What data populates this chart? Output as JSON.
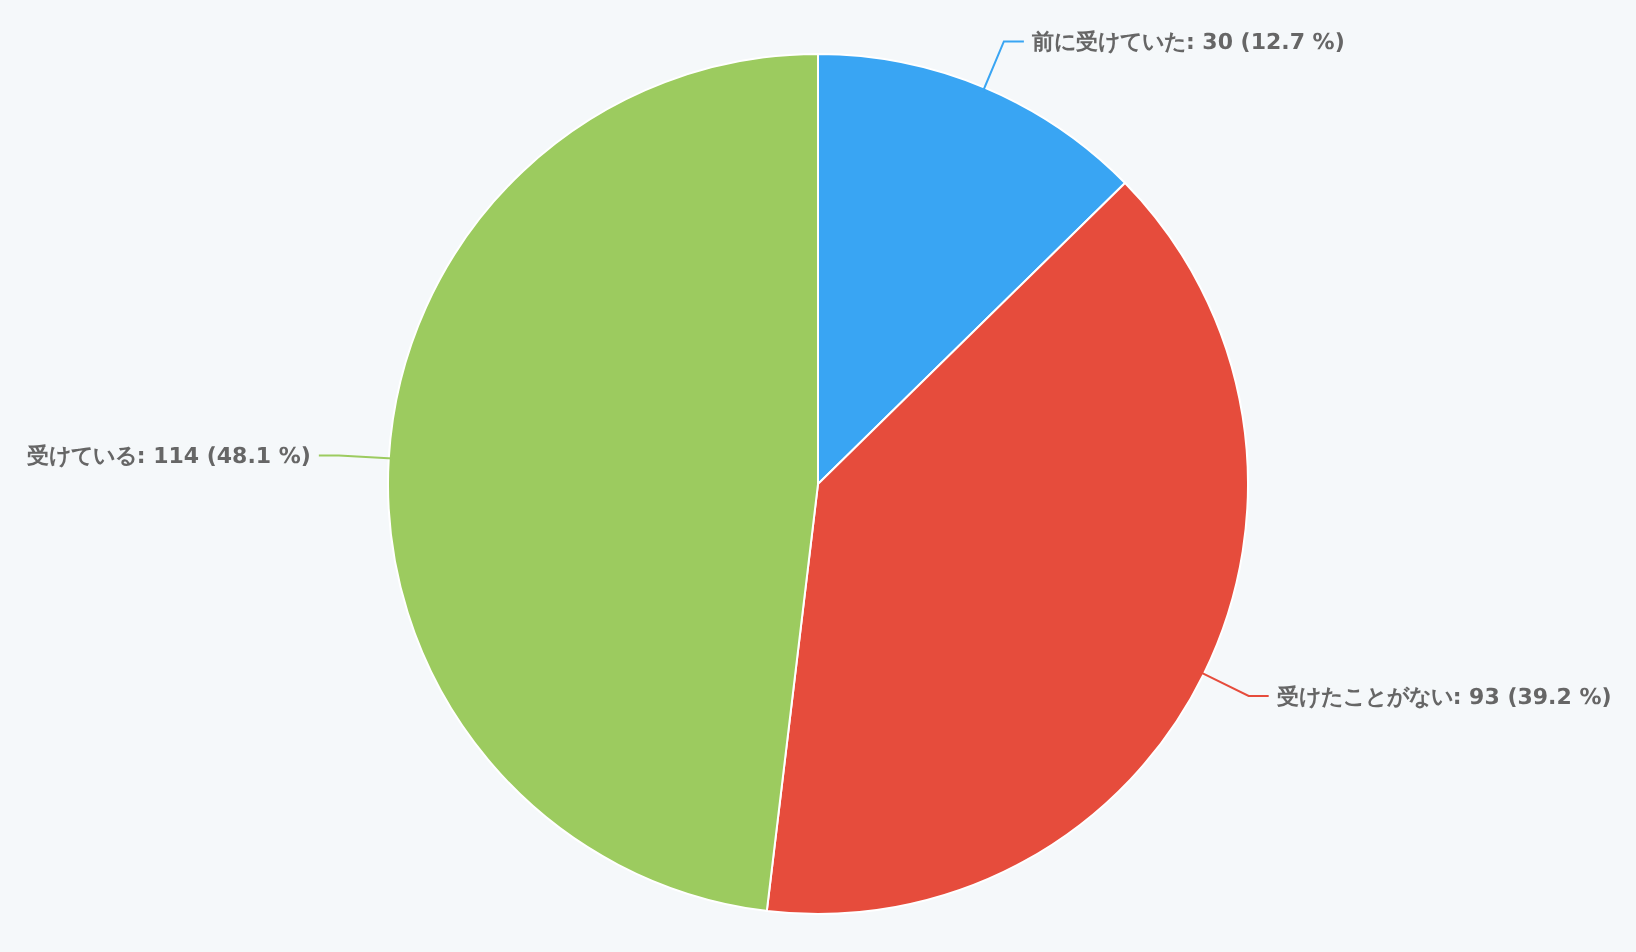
{
  "chart_data": {
    "type": "pie",
    "categories": [
      "前に受けていた",
      "受けたことがない",
      "受けている"
    ],
    "values": [
      30,
      93,
      114
    ],
    "colors": [
      "#39a5f3",
      "#e64c3c",
      "#9ccb5f"
    ],
    "value_labels": [
      "30 (12.7 %)",
      "93 (39.2 %)",
      "114 (48.1 %)"
    ]
  }
}
